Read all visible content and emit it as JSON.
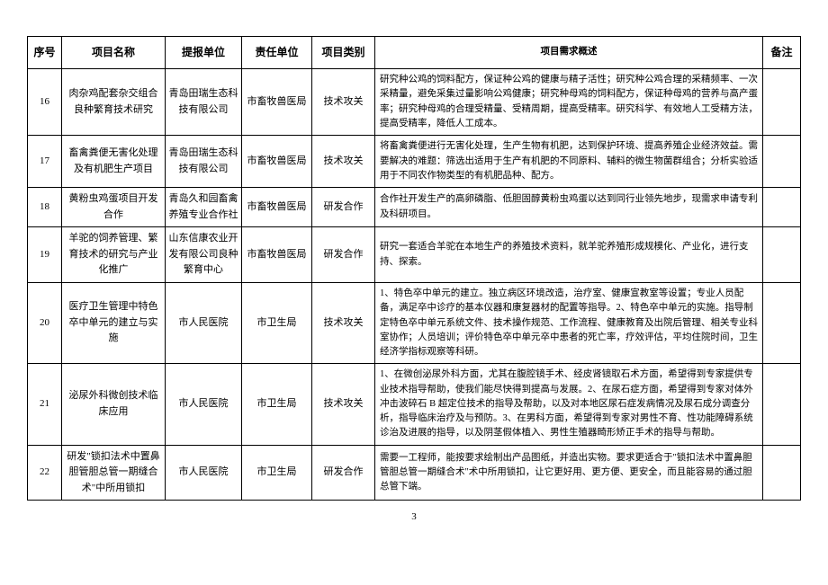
{
  "headers": {
    "seq": "序号",
    "name": "项目名称",
    "submit": "提报单位",
    "resp": "责任单位",
    "type": "项目类别",
    "desc": "项目需求概述",
    "remark": "备注"
  },
  "rows": [
    {
      "seq": "16",
      "name": "肉杂鸡配套杂交组合良种繁育技术研究",
      "submit": "青岛田瑞生态科技有限公司",
      "resp": "市畜牧兽医局",
      "type": "技术攻关",
      "desc": "研究种公鸡的饲料配方，保证种公鸡的健康与精子活性；研究种公鸡合理的采精频率、一次采精量，避免采集过量影响公鸡健康；研究种母鸡的饲料配方，保证种母鸡的营养与高产蛋率；研究种母鸡的合理受精量、受精周期，提高受精率。研究科学、有效地人工受精方法，提高受精率，降低人工成本。",
      "remark": ""
    },
    {
      "seq": "17",
      "name": "畜禽粪便无害化处理及有机肥生产项目",
      "submit": "青岛田瑞生态科技有限公司",
      "resp": "市畜牧兽医局",
      "type": "技术攻关",
      "desc": "将畜禽粪便进行无害化处理，生产生物有机肥，达到保护环境、提高养殖企业经济效益。需要解决的难题：筛选出适用于生产有机肥的不同原料、辅料的微生物菌群组合；分析实验适用于不同农作物类型的有机肥品种、配方。",
      "remark": ""
    },
    {
      "seq": "18",
      "name": "黄粉虫鸡蛋项目开发合作",
      "submit": "青岛久和园畜禽养殖专业合作社",
      "resp": "市畜牧兽医局",
      "type": "研发合作",
      "desc": "合作社开发生产的高卵磷脂、低胆固醇黄粉虫鸡蛋以达到同行业领先地步，现需求申请专利及科研项目。",
      "remark": ""
    },
    {
      "seq": "19",
      "name": "羊驼的饲养管理、繁育技术的研究与产业化推广",
      "submit": "山东信康农业开发有限公司良种繁育中心",
      "resp": "市畜牧兽医局",
      "type": "研发合作",
      "desc": "研究一套适合羊驼在本地生产的养殖技术资料，就羊驼养殖形成规模化、产业化，进行支持、探索。",
      "remark": ""
    },
    {
      "seq": "20",
      "name": "医疗卫生管理中特色卒中单元的建立与实施",
      "submit": "市人民医院",
      "resp": "市卫生局",
      "type": "技术攻关",
      "desc": "1、特色卒中单元的建立。独立病区环境改造，治疗室、健康宣教室等设置；专业人员配备，满足卒中诊疗的基本仪器和康复器材的配置等指导。2、特色卒中单元的实施。指导制定特色卒中单元系统文件、技术操作规范、工作流程、健康教育及出院后管理、相关专业科室协作；人员培训；评价特色卒中单元卒中患者的死亡率，疗效评估，平均住院时间，卫生经济学指标观察等科研。",
      "remark": ""
    },
    {
      "seq": "21",
      "name": "泌尿外科微创技术临床应用",
      "submit": "市人民医院",
      "resp": "市卫生局",
      "type": "技术攻关",
      "desc": "1、在微创泌尿外科方面，尤其在腹腔镜手术、经皮肾镜取石术方面，希望得到专家提供专业技术指导帮助，使我们能尽快得到提高与发展。2、在尿石症方面，希望得到专家对体外冲击波碎石 B 超定位技术的指导及帮助，以及对本地区尿石症发病情况及尿石成分调查分析，指导临床治疗及与预防。3、在男科方面，希望得到专家对男性不育、性功能障碍系统诊治及进展的指导，以及阴茎假体植入、男性生殖器畸形矫正手术的指导与帮助。",
      "remark": ""
    },
    {
      "seq": "22",
      "name": "研发\"锁扣法术中置鼻胆管胆总管一期缝合术\"中所用锁扣",
      "submit": "市人民医院",
      "resp": "市卫生局",
      "type": "研发合作",
      "desc": "需要一工程师，能按要求绘制出产品图纸，并造出实物。要求更适合于\"锁扣法术中置鼻胆管胆总管一期缝合术\"术中所用锁扣，让它更好用、更方便、更安全，而且能容易的通过胆总管下端。",
      "remark": ""
    }
  ],
  "pageNumber": "3"
}
